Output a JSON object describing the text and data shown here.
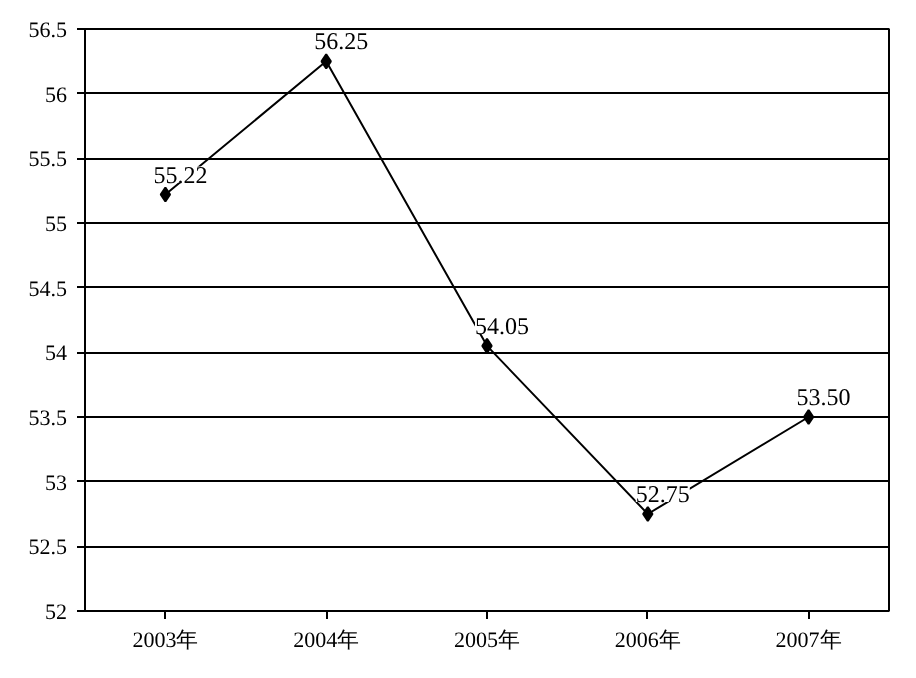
{
  "chart_data": {
    "type": "line",
    "categories": [
      "2003年",
      "2004年",
      "2005年",
      "2006年",
      "2007年"
    ],
    "series": [
      {
        "color": "#000000",
        "values": [
          55.22,
          56.25,
          54.05,
          52.75,
          53.5
        ],
        "value_labels": [
          "55.22",
          "56.25",
          "54.05",
          "52.75",
          "53.50"
        ]
      }
    ],
    "ylim": [
      52,
      56.5
    ],
    "yticks": [
      52,
      52.5,
      53,
      53.5,
      54,
      54.5,
      55,
      55.5,
      56,
      56.5
    ],
    "grid": "y",
    "marker": "diamond",
    "line_style": "solid"
  }
}
